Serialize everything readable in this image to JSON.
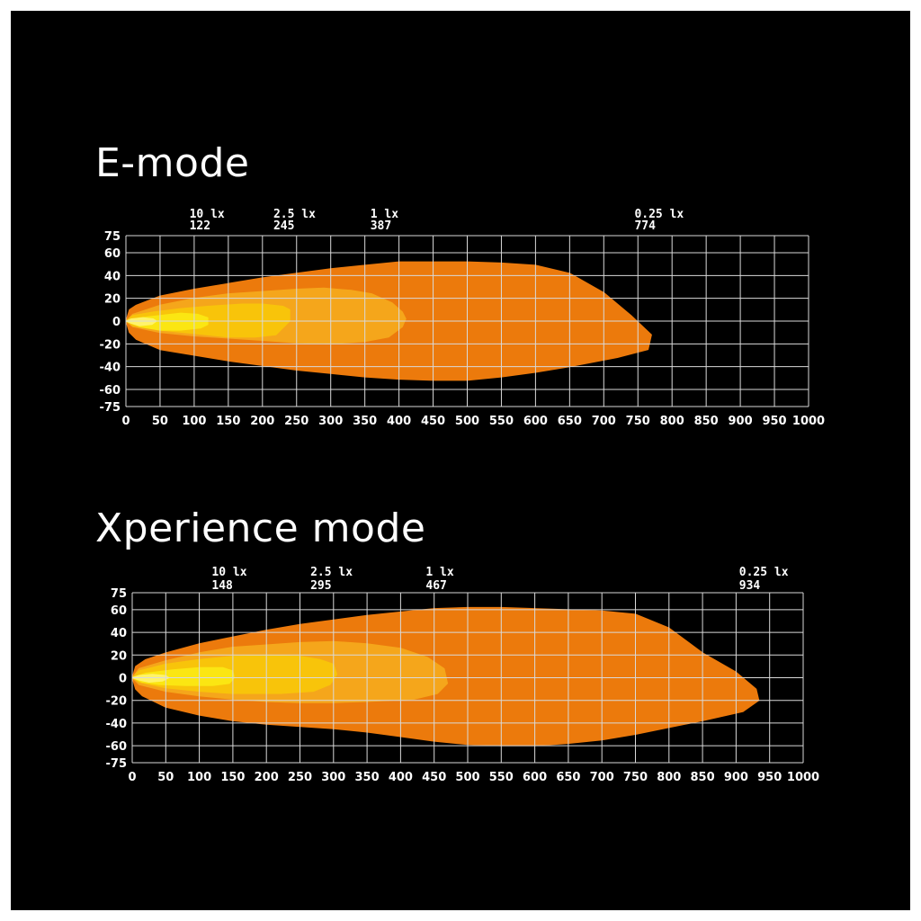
{
  "chart_data": [
    {
      "type": "area",
      "title": "E-mode",
      "xlim": [
        0,
        1000
      ],
      "ylim": [
        -75,
        75
      ],
      "x_ticks": [
        0,
        50,
        100,
        150,
        200,
        250,
        300,
        350,
        400,
        450,
        500,
        550,
        600,
        650,
        700,
        750,
        800,
        850,
        900,
        950,
        1000
      ],
      "y_ticks": [
        75,
        60,
        40,
        20,
        0,
        -20,
        -40,
        -60,
        -75
      ],
      "grid": true,
      "colors": {
        "background": "#000000",
        "grid": "#d9d9d9",
        "ticks": "#ffffff"
      },
      "markers": [
        {
          "label": "10 lx",
          "value": 122
        },
        {
          "label": "2.5 lx",
          "value": 245
        },
        {
          "label": "1 lx",
          "value": 387
        },
        {
          "label": "0.25 lx",
          "value": 774
        }
      ],
      "zones": [
        {
          "color": "#ec7a0c",
          "points": [
            [
              0,
              0
            ],
            [
              5,
              10
            ],
            [
              15,
              14
            ],
            [
              50,
              22
            ],
            [
              100,
              28
            ],
            [
              150,
              33
            ],
            [
              200,
              38
            ],
            [
              250,
              42
            ],
            [
              300,
              46
            ],
            [
              350,
              49
            ],
            [
              400,
              52
            ],
            [
              450,
              52
            ],
            [
              500,
              52
            ],
            [
              550,
              51
            ],
            [
              600,
              49
            ],
            [
              650,
              42
            ],
            [
              700,
              25
            ],
            [
              740,
              5
            ],
            [
              770,
              -12
            ],
            [
              765,
              -25
            ],
            [
              720,
              -32
            ],
            [
              650,
              -40
            ],
            [
              600,
              -45
            ],
            [
              550,
              -49
            ],
            [
              500,
              -52
            ],
            [
              450,
              -52
            ],
            [
              400,
              -51
            ],
            [
              350,
              -49
            ],
            [
              300,
              -46
            ],
            [
              250,
              -43
            ],
            [
              200,
              -39
            ],
            [
              150,
              -35
            ],
            [
              100,
              -30
            ],
            [
              50,
              -25
            ],
            [
              15,
              -16
            ],
            [
              5,
              -10
            ]
          ]
        },
        {
          "color": "#f5a61b",
          "points": [
            [
              0,
              0
            ],
            [
              10,
              6
            ],
            [
              50,
              14
            ],
            [
              100,
              20
            ],
            [
              150,
              24
            ],
            [
              200,
              26
            ],
            [
              250,
              28
            ],
            [
              290,
              29
            ],
            [
              330,
              27
            ],
            [
              360,
              24
            ],
            [
              390,
              16
            ],
            [
              405,
              8
            ],
            [
              410,
              2
            ],
            [
              405,
              -5
            ],
            [
              385,
              -14
            ],
            [
              350,
              -18
            ],
            [
              300,
              -20
            ],
            [
              250,
              -19
            ],
            [
              200,
              -17
            ],
            [
              150,
              -15
            ],
            [
              100,
              -13
            ],
            [
              50,
              -10
            ],
            [
              10,
              -5
            ]
          ]
        },
        {
          "color": "#f8c40a",
          "points": [
            [
              0,
              0
            ],
            [
              10,
              5
            ],
            [
              40,
              8
            ],
            [
              80,
              11
            ],
            [
              120,
              13
            ],
            [
              170,
              15
            ],
            [
              200,
              15
            ],
            [
              230,
              13
            ],
            [
              240,
              10
            ],
            [
              240,
              0
            ],
            [
              220,
              -12
            ],
            [
              190,
              -14
            ],
            [
              150,
              -14
            ],
            [
              100,
              -11
            ],
            [
              50,
              -8
            ],
            [
              10,
              -4
            ]
          ]
        },
        {
          "color": "#fbe612",
          "points": [
            [
              0,
              0
            ],
            [
              20,
              3
            ],
            [
              50,
              5
            ],
            [
              80,
              7
            ],
            [
              105,
              6
            ],
            [
              120,
              3
            ],
            [
              120,
              -3
            ],
            [
              110,
              -6
            ],
            [
              80,
              -8
            ],
            [
              50,
              -8
            ],
            [
              20,
              -5
            ]
          ]
        },
        {
          "color": "#fff36a",
          "points": [
            [
              0,
              0
            ],
            [
              8,
              2
            ],
            [
              25,
              3
            ],
            [
              40,
              2
            ],
            [
              45,
              0
            ],
            [
              38,
              -3
            ],
            [
              20,
              -4
            ],
            [
              8,
              -2
            ]
          ]
        }
      ]
    },
    {
      "type": "area",
      "title": "Xperience mode",
      "xlim": [
        0,
        1000
      ],
      "ylim": [
        -75,
        75
      ],
      "x_ticks": [
        0,
        50,
        100,
        150,
        200,
        250,
        300,
        350,
        400,
        450,
        500,
        550,
        600,
        650,
        700,
        750,
        800,
        850,
        900,
        950,
        1000
      ],
      "y_ticks": [
        75,
        60,
        40,
        20,
        0,
        -20,
        -40,
        -60,
        -75
      ],
      "grid": true,
      "colors": {
        "background": "#000000",
        "grid": "#d9d9d9",
        "ticks": "#ffffff"
      },
      "markers": [
        {
          "label": "10 lx",
          "value": 148
        },
        {
          "label": "2.5 lx",
          "value": 295
        },
        {
          "label": "1 lx",
          "value": 467
        },
        {
          "label": "0.25 lx",
          "value": 934
        }
      ],
      "zones": [
        {
          "color": "#ec7a0c",
          "points": [
            [
              0,
              0
            ],
            [
              5,
              10
            ],
            [
              20,
              16
            ],
            [
              50,
              22
            ],
            [
              100,
              30
            ],
            [
              150,
              36
            ],
            [
              200,
              42
            ],
            [
              250,
              47
            ],
            [
              300,
              51
            ],
            [
              350,
              55
            ],
            [
              400,
              58
            ],
            [
              450,
              61
            ],
            [
              500,
              62
            ],
            [
              550,
              62
            ],
            [
              600,
              61
            ],
            [
              650,
              60
            ],
            [
              700,
              59
            ],
            [
              750,
              56
            ],
            [
              800,
              44
            ],
            [
              850,
              22
            ],
            [
              900,
              5
            ],
            [
              930,
              -10
            ],
            [
              934,
              -20
            ],
            [
              910,
              -30
            ],
            [
              850,
              -38
            ],
            [
              800,
              -44
            ],
            [
              750,
              -50
            ],
            [
              700,
              -55
            ],
            [
              650,
              -58
            ],
            [
              600,
              -60
            ],
            [
              550,
              -60
            ],
            [
              500,
              -59
            ],
            [
              450,
              -56
            ],
            [
              400,
              -52
            ],
            [
              350,
              -48
            ],
            [
              300,
              -45
            ],
            [
              250,
              -43
            ],
            [
              200,
              -41
            ],
            [
              150,
              -38
            ],
            [
              100,
              -33
            ],
            [
              50,
              -26
            ],
            [
              15,
              -16
            ],
            [
              5,
              -10
            ]
          ]
        },
        {
          "color": "#f5a61b",
          "points": [
            [
              0,
              0
            ],
            [
              10,
              8
            ],
            [
              50,
              15
            ],
            [
              100,
              22
            ],
            [
              150,
              27
            ],
            [
              200,
              29
            ],
            [
              250,
              31
            ],
            [
              300,
              32
            ],
            [
              350,
              30
            ],
            [
              400,
              26
            ],
            [
              440,
              18
            ],
            [
              465,
              8
            ],
            [
              470,
              -5
            ],
            [
              455,
              -14
            ],
            [
              420,
              -19
            ],
            [
              350,
              -21
            ],
            [
              300,
              -22
            ],
            [
              250,
              -22
            ],
            [
              200,
              -21
            ],
            [
              150,
              -19
            ],
            [
              100,
              -16
            ],
            [
              50,
              -12
            ],
            [
              10,
              -6
            ]
          ]
        },
        {
          "color": "#f8c40a",
          "points": [
            [
              0,
              0
            ],
            [
              10,
              6
            ],
            [
              50,
              12
            ],
            [
              100,
              16
            ],
            [
              150,
              19
            ],
            [
              200,
              20
            ],
            [
              250,
              19
            ],
            [
              280,
              16
            ],
            [
              300,
              12
            ],
            [
              305,
              3
            ],
            [
              295,
              -6
            ],
            [
              270,
              -12
            ],
            [
              220,
              -14
            ],
            [
              150,
              -14
            ],
            [
              100,
              -12
            ],
            [
              50,
              -9
            ],
            [
              10,
              -4
            ]
          ]
        },
        {
          "color": "#fbe612",
          "points": [
            [
              0,
              0
            ],
            [
              20,
              4
            ],
            [
              60,
              7
            ],
            [
              100,
              9
            ],
            [
              135,
              9
            ],
            [
              150,
              6
            ],
            [
              152,
              0
            ],
            [
              145,
              -5
            ],
            [
              120,
              -7
            ],
            [
              80,
              -7
            ],
            [
              40,
              -6
            ],
            [
              15,
              -4
            ]
          ]
        },
        {
          "color": "#fff36a",
          "points": [
            [
              0,
              0
            ],
            [
              10,
              2
            ],
            [
              30,
              3
            ],
            [
              50,
              2
            ],
            [
              55,
              0
            ],
            [
              45,
              -3
            ],
            [
              25,
              -4
            ],
            [
              10,
              -2
            ]
          ]
        }
      ]
    }
  ]
}
